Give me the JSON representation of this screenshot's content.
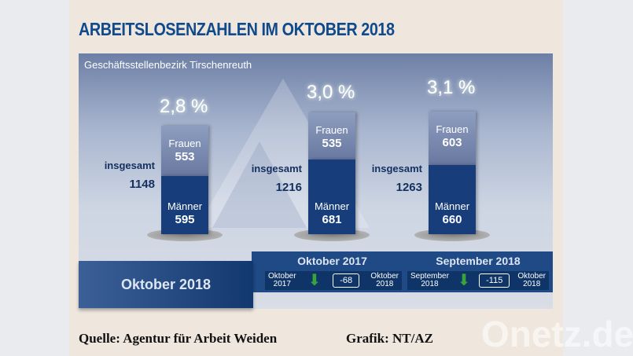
{
  "title": "ARBEITSLOSENZAHLEN IM OKTOBER 2018",
  "subtitle": "Geschäftsstellenbezirk Tirschenreuth",
  "columns": [
    {
      "percent": "2,8 %",
      "insgesamt_label": "insgesamt",
      "total": "1148",
      "frauen_label": "Frauen",
      "frauen": "553",
      "maenner_label": "Männer",
      "maenner": "595"
    },
    {
      "percent": "3,0 %",
      "insgesamt_label": "insgesamt",
      "total": "1216",
      "frauen_label": "Frauen",
      "frauen": "535",
      "maenner_label": "Männer",
      "maenner": "681"
    },
    {
      "percent": "3,1 %",
      "insgesamt_label": "insgesamt",
      "total": "1263",
      "frauen_label": "Frauen",
      "frauen": "603",
      "maenner_label": "Männer",
      "maenner": "660"
    }
  ],
  "band_label": "Oktober 2018",
  "comparisons": [
    {
      "heading": "Oktober 2017",
      "from_1": "Oktober",
      "from_2": "2017",
      "delta": "-68",
      "to_1": "Oktober",
      "to_2": "2018",
      "icon": "arrow-down-icon"
    },
    {
      "heading": "September 2018",
      "from_1": "September",
      "from_2": "2018",
      "delta": "-115",
      "to_1": "Oktober",
      "to_2": "2018",
      "icon": "arrow-down-icon"
    }
  ],
  "source": "Quelle: Agentur für Arbeit Weiden",
  "credit": "Grafik: NT/AZ",
  "watermark": "Onetz.de"
}
